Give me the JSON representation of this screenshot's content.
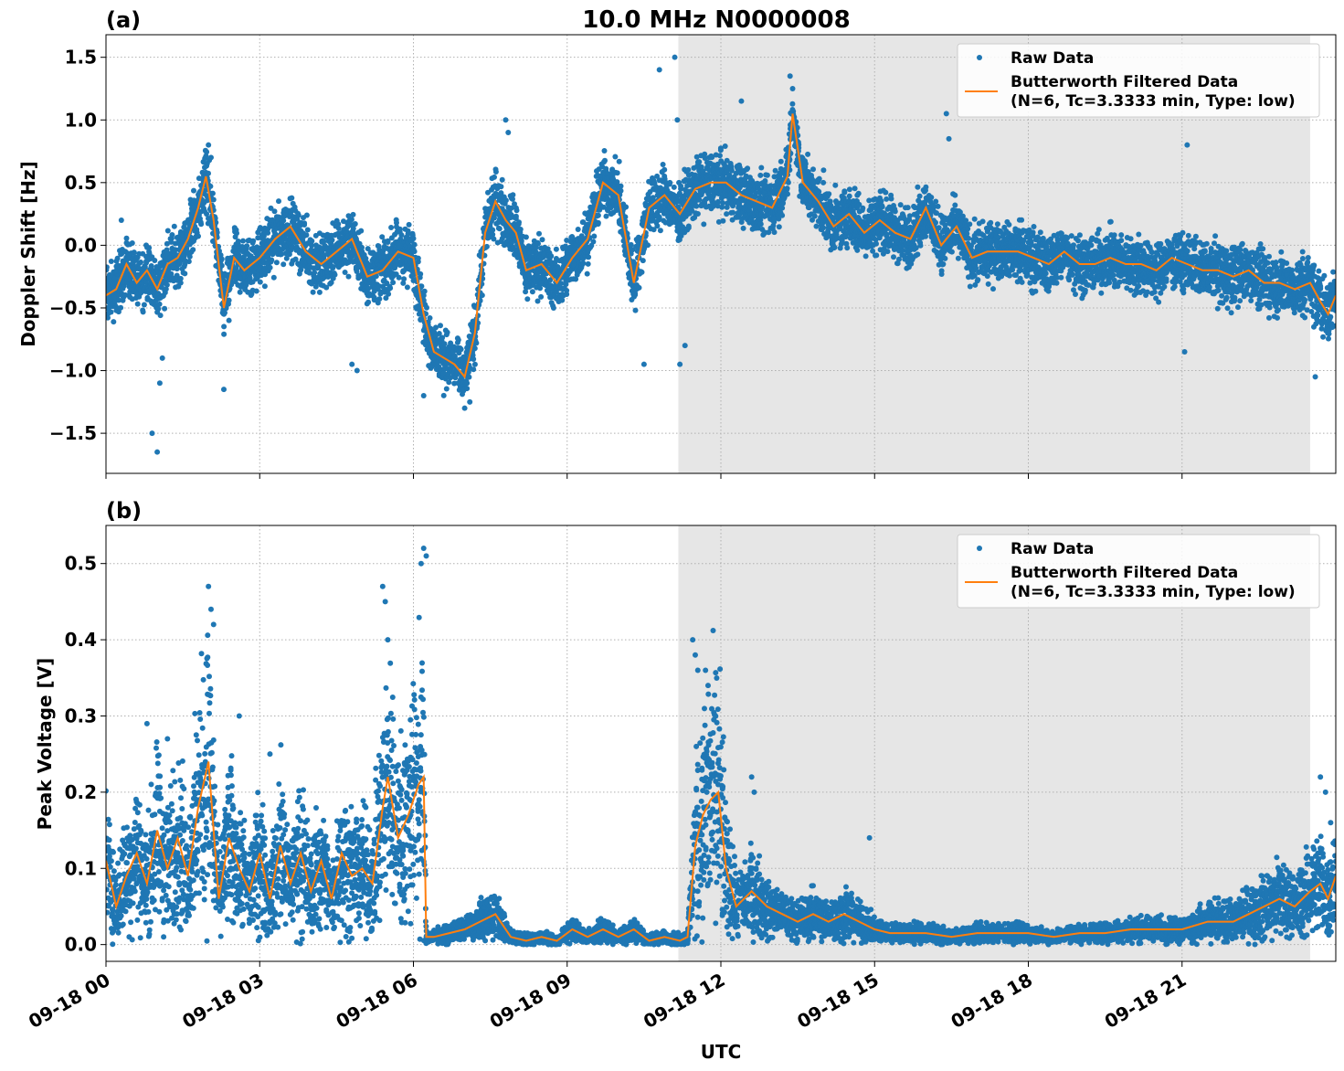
{
  "figure": {
    "title": "10.0 MHz N0000008",
    "xlabel": "UTC"
  },
  "colors": {
    "raw": "#1f77b4",
    "filtered": "#ff7f0e",
    "night_shade": "#e6e6e6",
    "grid": "#b0b0b0"
  },
  "chart_data": [
    {
      "type": "scatter",
      "panel_label": "(a)",
      "title": "10.0 MHz N0000008",
      "ylabel": "Doppler Shift [Hz]",
      "xlabel": "",
      "xlim": [
        0,
        24
      ],
      "ylim": [
        -1.82,
        1.68
      ],
      "yticks": [
        1.5,
        1.0,
        0.5,
        0.0,
        -0.5,
        -1.0,
        -1.5
      ],
      "ytick_labels": [
        "1.5",
        "1.0",
        "0.5",
        "0.0",
        "−0.5",
        "−1.0",
        "−1.5"
      ],
      "xticks": [
        0,
        3,
        6,
        9,
        12,
        15,
        18,
        21
      ],
      "xtick_labels": [
        "09-18 00",
        "09-18 03",
        "09-18 06",
        "09-18 09",
        "09-18 12",
        "09-18 15",
        "09-18 18",
        "09-18 21"
      ],
      "x_unit": "hours UTC",
      "shaded_interval": [
        11.17,
        23.5
      ],
      "grid": true,
      "legend_placement": "top-right",
      "legend": [
        "Raw Data",
        "Butterworth Filtered Data",
        "(N=6, Tc=3.3333 min, Type: low)"
      ],
      "series": [
        {
          "name": "Butterworth Filtered Data",
          "kind": "line",
          "x": [
            0,
            0.2,
            0.4,
            0.6,
            0.8,
            1.0,
            1.2,
            1.4,
            1.6,
            1.8,
            1.95,
            2.1,
            2.3,
            2.5,
            2.7,
            3.0,
            3.3,
            3.6,
            3.9,
            4.2,
            4.5,
            4.8,
            5.1,
            5.4,
            5.7,
            6.0,
            6.2,
            6.4,
            6.6,
            6.8,
            7.0,
            7.2,
            7.4,
            7.6,
            7.8,
            8.0,
            8.2,
            8.5,
            8.8,
            9.1,
            9.4,
            9.7,
            10.0,
            10.3,
            10.6,
            10.9,
            11.2,
            11.5,
            11.8,
            12.1,
            12.4,
            12.7,
            13.0,
            13.3,
            13.4,
            13.6,
            13.9,
            14.2,
            14.5,
            14.8,
            15.1,
            15.4,
            15.7,
            16.0,
            16.3,
            16.6,
            16.9,
            17.2,
            17.5,
            17.8,
            18.1,
            18.4,
            18.7,
            19.0,
            19.3,
            19.6,
            19.9,
            20.2,
            20.5,
            20.8,
            21.1,
            21.4,
            21.7,
            22.0,
            22.3,
            22.6,
            22.9,
            23.2,
            23.5,
            23.7,
            23.85,
            24.0
          ],
          "y": [
            -0.4,
            -0.35,
            -0.15,
            -0.3,
            -0.2,
            -0.35,
            -0.15,
            -0.1,
            0.05,
            0.3,
            0.55,
            0.2,
            -0.5,
            -0.1,
            -0.2,
            -0.1,
            0.05,
            0.15,
            -0.05,
            -0.15,
            -0.05,
            0.05,
            -0.25,
            -0.2,
            -0.05,
            -0.1,
            -0.55,
            -0.85,
            -0.9,
            -0.95,
            -1.05,
            -0.7,
            0.1,
            0.35,
            0.2,
            0.1,
            -0.2,
            -0.15,
            -0.3,
            -0.1,
            0.05,
            0.5,
            0.4,
            -0.3,
            0.3,
            0.4,
            0.25,
            0.45,
            0.5,
            0.5,
            0.4,
            0.35,
            0.3,
            0.55,
            1.05,
            0.5,
            0.35,
            0.15,
            0.25,
            0.1,
            0.2,
            0.1,
            0.05,
            0.3,
            0.0,
            0.15,
            -0.1,
            -0.05,
            -0.05,
            -0.05,
            -0.1,
            -0.15,
            -0.05,
            -0.15,
            -0.15,
            -0.1,
            -0.15,
            -0.15,
            -0.2,
            -0.1,
            -0.15,
            -0.2,
            -0.2,
            -0.25,
            -0.2,
            -0.3,
            -0.3,
            -0.35,
            -0.3,
            -0.45,
            -0.55,
            -0.4
          ]
        },
        {
          "name": "Raw Data",
          "kind": "scatter",
          "x": [
            0.3,
            0.9,
            1.0,
            1.05,
            1.1,
            2.0,
            2.05,
            2.3,
            2.4,
            4.8,
            4.9,
            6.2,
            7.0,
            7.1,
            7.8,
            7.85,
            10.5,
            10.8,
            11.1,
            11.15,
            11.2,
            11.3,
            12.4,
            13.35,
            13.4,
            16.4,
            16.45,
            21.1,
            21.05,
            23.6
          ],
          "y": [
            0.2,
            -1.5,
            -1.65,
            -1.1,
            -0.9,
            0.8,
            0.7,
            -1.15,
            -0.6,
            -0.95,
            -1.0,
            -1.2,
            -1.3,
            -1.25,
            1.0,
            0.9,
            -0.95,
            1.4,
            1.5,
            1.0,
            -0.95,
            -0.8,
            1.15,
            1.35,
            1.25,
            1.05,
            0.85,
            0.8,
            -0.85,
            -1.05
          ]
        }
      ]
    },
    {
      "type": "scatter",
      "panel_label": "(b)",
      "title": "",
      "ylabel": "Peak Voltage [V]",
      "xlabel": "UTC",
      "xlim": [
        0,
        24
      ],
      "ylim": [
        -0.022,
        0.55
      ],
      "yticks": [
        0.5,
        0.4,
        0.3,
        0.2,
        0.1,
        0.0
      ],
      "ytick_labels": [
        "0.5",
        "0.4",
        "0.3",
        "0.2",
        "0.1",
        "0.0"
      ],
      "xticks": [
        0,
        3,
        6,
        9,
        12,
        15,
        18,
        21
      ],
      "xtick_labels": [
        "09-18 00",
        "09-18 03",
        "09-18 06",
        "09-18 09",
        "09-18 12",
        "09-18 15",
        "09-18 18",
        "09-18 21"
      ],
      "x_unit": "hours UTC",
      "shaded_interval": [
        11.17,
        23.5
      ],
      "grid": true,
      "legend_placement": "top-right",
      "legend": [
        "Raw Data",
        "Butterworth Filtered Data",
        "(N=6, Tc=3.3333 min, Type: low)"
      ],
      "series": [
        {
          "name": "Butterworth Filtered Data",
          "kind": "line",
          "x": [
            0,
            0.2,
            0.4,
            0.6,
            0.8,
            1.0,
            1.2,
            1.4,
            1.6,
            1.8,
            2.0,
            2.2,
            2.4,
            2.6,
            2.8,
            3.0,
            3.2,
            3.4,
            3.6,
            3.8,
            4.0,
            4.2,
            4.4,
            4.6,
            4.8,
            5.0,
            5.2,
            5.4,
            5.5,
            5.7,
            5.9,
            6.1,
            6.2,
            6.25,
            6.4,
            6.7,
            7.0,
            7.3,
            7.6,
            7.9,
            8.2,
            8.5,
            8.8,
            9.1,
            9.4,
            9.7,
            10.0,
            10.3,
            10.6,
            10.9,
            11.2,
            11.35,
            11.5,
            11.65,
            11.8,
            11.95,
            12.1,
            12.3,
            12.6,
            12.9,
            13.2,
            13.5,
            13.8,
            14.1,
            14.4,
            14.7,
            15.0,
            15.3,
            15.6,
            16.0,
            16.5,
            17.0,
            17.5,
            18.0,
            18.5,
            19.0,
            19.5,
            20.0,
            20.5,
            21.0,
            21.5,
            22.0,
            22.3,
            22.6,
            22.9,
            23.2,
            23.5,
            23.7,
            23.85,
            24.0
          ],
          "y": [
            0.11,
            0.05,
            0.09,
            0.12,
            0.08,
            0.15,
            0.1,
            0.14,
            0.09,
            0.18,
            0.24,
            0.06,
            0.14,
            0.1,
            0.07,
            0.12,
            0.06,
            0.13,
            0.08,
            0.12,
            0.07,
            0.11,
            0.06,
            0.12,
            0.09,
            0.1,
            0.08,
            0.18,
            0.22,
            0.14,
            0.17,
            0.21,
            0.22,
            0.01,
            0.01,
            0.015,
            0.02,
            0.03,
            0.04,
            0.01,
            0.005,
            0.01,
            0.005,
            0.02,
            0.01,
            0.02,
            0.01,
            0.02,
            0.005,
            0.01,
            0.005,
            0.01,
            0.13,
            0.17,
            0.19,
            0.2,
            0.1,
            0.05,
            0.07,
            0.05,
            0.04,
            0.03,
            0.04,
            0.03,
            0.04,
            0.03,
            0.02,
            0.015,
            0.015,
            0.015,
            0.01,
            0.015,
            0.015,
            0.015,
            0.01,
            0.015,
            0.015,
            0.02,
            0.02,
            0.02,
            0.03,
            0.03,
            0.04,
            0.05,
            0.06,
            0.05,
            0.07,
            0.08,
            0.06,
            0.09
          ]
        },
        {
          "name": "Raw Data",
          "kind": "scatter",
          "x": [
            0.8,
            1.2,
            2.0,
            2.05,
            2.1,
            2.6,
            3.2,
            5.4,
            5.45,
            5.5,
            6.15,
            6.2,
            6.25,
            11.45,
            11.5,
            11.55,
            11.7,
            11.75,
            12.6,
            12.65,
            14.9,
            23.7,
            23.8,
            23.9
          ],
          "y": [
            0.29,
            0.27,
            0.47,
            0.44,
            0.42,
            0.3,
            0.25,
            0.47,
            0.45,
            0.4,
            0.5,
            0.52,
            0.51,
            0.4,
            0.38,
            0.36,
            0.36,
            0.34,
            0.22,
            0.2,
            0.14,
            0.22,
            0.2,
            0.16
          ]
        }
      ]
    }
  ]
}
